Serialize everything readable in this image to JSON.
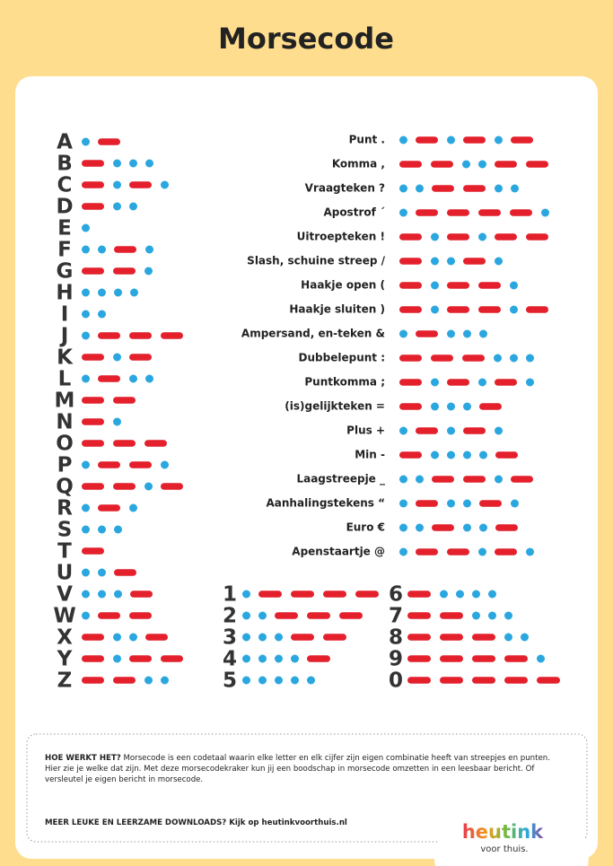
{
  "title": "Morsecode",
  "letters": [
    {
      "char": "A",
      "code": ".-"
    },
    {
      "char": "B",
      "code": "-..."
    },
    {
      "char": "C",
      "code": "-.-."
    },
    {
      "char": "D",
      "code": "-.."
    },
    {
      "char": "E",
      "code": "."
    },
    {
      "char": "F",
      "code": "..-."
    },
    {
      "char": "G",
      "code": "--."
    },
    {
      "char": "H",
      "code": "...."
    },
    {
      "char": "I",
      "code": ".."
    },
    {
      "char": "J",
      "code": ".---"
    },
    {
      "char": "K",
      "code": "-.-"
    },
    {
      "char": "L",
      "code": ".-.."
    },
    {
      "char": "M",
      "code": "--"
    },
    {
      "char": "N",
      "code": "-."
    },
    {
      "char": "O",
      "code": "---"
    },
    {
      "char": "P",
      "code": ".--."
    },
    {
      "char": "Q",
      "code": "--.-"
    },
    {
      "char": "R",
      "code": ".-."
    },
    {
      "char": "S",
      "code": "..."
    },
    {
      "char": "T",
      "code": "-"
    },
    {
      "char": "U",
      "code": "..-"
    },
    {
      "char": "V",
      "code": "...-"
    },
    {
      "char": "W",
      "code": ".--"
    },
    {
      "char": "X",
      "code": "-..-"
    },
    {
      "char": "Y",
      "code": "-.--"
    },
    {
      "char": "Z",
      "code": "--.."
    }
  ],
  "punctuation": [
    {
      "label": "Punt .",
      "code": ".-.-.-"
    },
    {
      "label": "Komma ,",
      "code": "--..--"
    },
    {
      "label": "Vraagteken ?",
      "code": "..--.."
    },
    {
      "label": "Apostrof ´",
      "code": ".----."
    },
    {
      "label": "Uitroepteken !",
      "code": "-.-.--"
    },
    {
      "label": "Slash, schuine streep /",
      "code": "-..-."
    },
    {
      "label": "Haakje open (",
      "code": "-.--."
    },
    {
      "label": "Haakje sluiten )",
      "code": "-.--.-"
    },
    {
      "label": "Ampersand, en-teken &",
      "code": ".-..."
    },
    {
      "label": "Dubbelepunt :",
      "code": "---..."
    },
    {
      "label": "Puntkomma ;",
      "code": "-.-.-."
    },
    {
      "label": "(is)gelijkteken =",
      "code": "-...-"
    },
    {
      "label": "Plus +",
      "code": ".-.-."
    },
    {
      "label": "Min -",
      "code": "-....-"
    },
    {
      "label": "Laagstreepje _",
      "code": "..--.-"
    },
    {
      "label": "Aanhalingstekens “",
      "code": ".-..-."
    },
    {
      "label": "Euro €",
      "code": "..-..-"
    },
    {
      "label": "Apenstaartje @",
      "code": ".--.-."
    }
  ],
  "digits": [
    {
      "char": "1",
      "code": ".----"
    },
    {
      "char": "2",
      "code": "..---"
    },
    {
      "char": "3",
      "code": "...--"
    },
    {
      "char": "4",
      "code": "....-"
    },
    {
      "char": "5",
      "code": "....."
    },
    {
      "char": "6",
      "code": "-...."
    },
    {
      "char": "7",
      "code": "--..."
    },
    {
      "char": "8",
      "code": "---.."
    },
    {
      "char": "9",
      "code": "----."
    },
    {
      "char": "0",
      "code": "-----"
    }
  ],
  "footer": {
    "heading": "HOE WERKT HET?",
    "text": "Morsecode is een codetaal waarin elke letter en elk cijfer zijn eigen combinatie heeft van streepjes en punten. Hier zie je welke dat zijn. Met deze morsecodekraker kun jij een boodschap in morsecode omzetten in een leesbaar bericht. Of versleutel je eigen bericht in morsecode.",
    "downloads": "MEER LEUKE EN LEERZAME DOWNLOADS? Kijk op heutinkvoorthuis.nl"
  },
  "logo": {
    "brand": "heutink",
    "tagline": "voor thuis."
  }
}
